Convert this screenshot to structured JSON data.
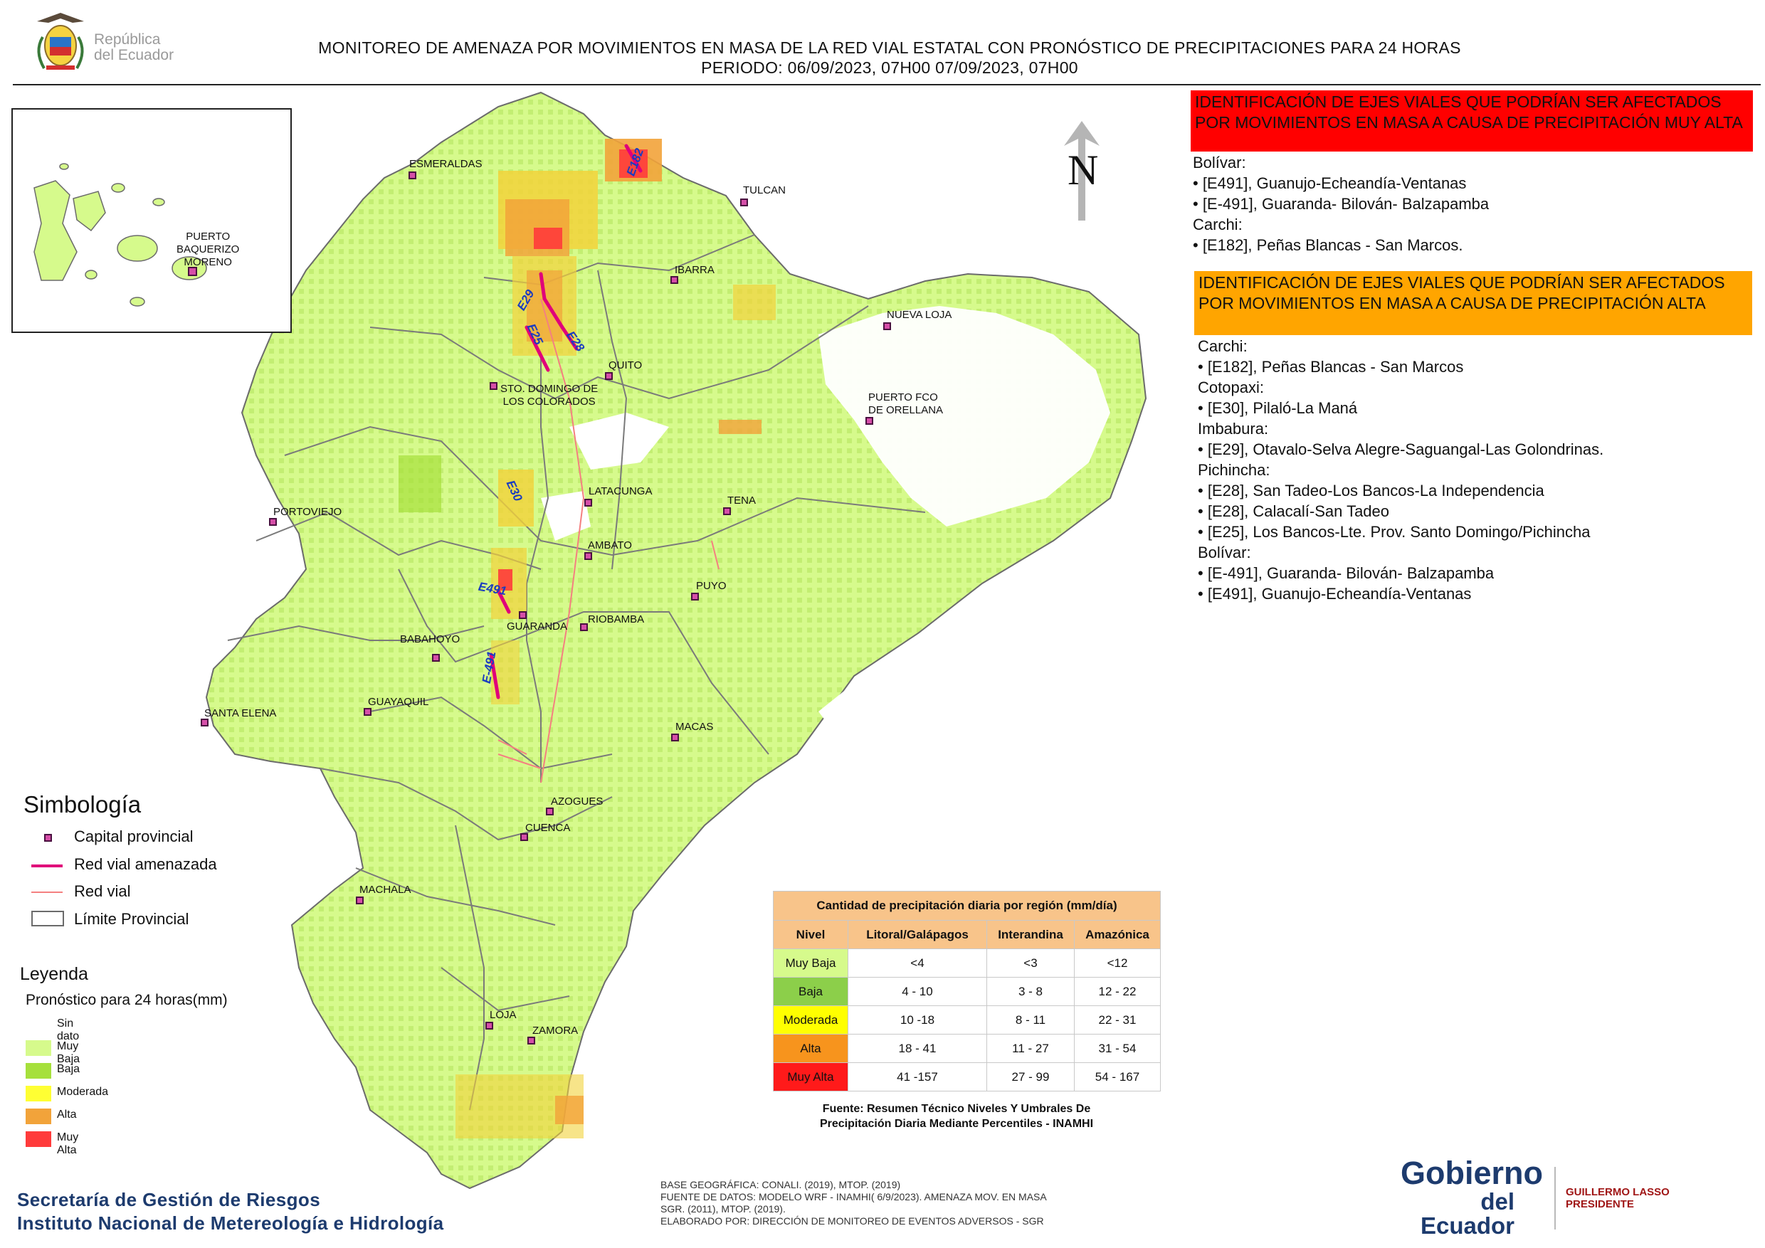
{
  "header": {
    "title_line1": "MONITOREO DE AMENAZA POR MOVIMIENTOS EN MASA DE LA RED VIAL  ESTATAL  CON PRONÓSTICO  DE  PRECIPITACIONES PARA 24 HORAS",
    "title_line2": "PERIODO: 06/09/2023, 07H00 07/09/2023, 07H00",
    "logo_line1": "República",
    "logo_line2": "del Ecuador"
  },
  "map": {
    "north_label": "N",
    "inset_city": [
      "PUERTO",
      "BAQUERIZO",
      "MORENO"
    ],
    "cities": {
      "esmeraldas": "ESMERALDAS",
      "tulcan": "TULCAN",
      "ibarra": "IBARRA",
      "nueva_loja": "NUEVA LOJA",
      "quito": "QUITO",
      "sto_domingo_1": "STO. DOMINGO DE",
      "sto_domingo_2": "LOS COLORADOS",
      "orellana_1": "PUERTO FCO",
      "orellana_2": "DE ORELLANA",
      "latacunga": "LATACUNGA",
      "tena": "TENA",
      "portoviejo": "PORTOVIEJO",
      "ambato": "AMBATO",
      "puyo": "PUYO",
      "guaranda": "GUARANDA",
      "riobamba": "RIOBAMBA",
      "babahoyo": "BABAHOYO",
      "guayaquil": "GUAYAQUIL",
      "santa_elena": "SANTA ELENA",
      "macas": "MACAS",
      "azogues": "AZOGUES",
      "cuenca": "CUENCA",
      "machala": "MACHALA",
      "loja": "LOJA",
      "zamora": "ZAMORA"
    },
    "roads": {
      "e182": "E182",
      "e29": "E29",
      "e25": "E25",
      "e28": "E28",
      "e30": "E30",
      "e491": "E491",
      "e_491": "E-491"
    }
  },
  "panel_muy_alta": {
    "header": "IDENTIFICACIÓN DE EJES VIALES QUE PODRÍAN SER AFECTADOS POR MOVIMIENTOS EN MASA A CAUSA DE PRECIPITACIÓN MUY ALTA",
    "color": "#ff0000",
    "lines": [
      "Bolívar:",
      "• [E491], Guanujo-Echeandía-Ventanas",
      "• [E-491], Guaranda- Bilován- Balzapamba",
      "Carchi:",
      "• [E182], Peñas Blancas - San Marcos."
    ]
  },
  "panel_alta": {
    "header": "IDENTIFICACIÓN DE EJES VIALES QUE PODRÍAN SER AFECTADOS POR MOVIMIENTOS EN MASA A CAUSA DE PRECIPITACIÓN  ALTA",
    "color": "#ffa500",
    "lines": [
      "Carchi:",
      "• [E182], Peñas Blancas - San Marcos",
      "Cotopaxi:",
      "• [E30], Pilaló-La Maná",
      "Imbabura:",
      "• [E29], Otavalo-Selva Alegre-Saguangal-Las Golondrinas.",
      "Pichincha:",
      "• [E28], San Tadeo-Los Bancos-La Independencia",
      "• [E28], Calacalí-San Tadeo",
      "• [E25], Los Bancos-Lte. Prov. Santo Domingo/Pichincha",
      "Bolívar:",
      "• [E-491], Guaranda- Bilován- Balzapamba",
      "• [E491], Guanujo-Echeandía-Ventanas"
    ]
  },
  "simbologia": {
    "title": "Simbología",
    "items": [
      "Capital provincial",
      "Red vial amenazada",
      "Red vial",
      "Límite Provincial"
    ]
  },
  "leyenda": {
    "title": "Leyenda",
    "subtitle": "Pronóstico para 24 horas(mm)",
    "items": [
      {
        "label": "Sin dato",
        "color": "#ffffff"
      },
      {
        "label": "Muy Baja",
        "color": "#d6fa8c"
      },
      {
        "label": "Baja",
        "color": "#a6e03c"
      },
      {
        "label": "Moderada",
        "color": "#ffff33"
      },
      {
        "label": "Alta",
        "color": "#f2a33a"
      },
      {
        "label": "Muy Alta",
        "color": "#ff3b3b"
      }
    ]
  },
  "precip_table": {
    "title": "Cantidad de precipitación diaria por región (mm/día)",
    "headers": [
      "Nivel",
      "Litoral/Galápagos",
      "Interandina",
      "Amazónica"
    ],
    "rows": [
      {
        "nivel": "Muy Baja",
        "color": "#d6fa8c",
        "litoral": "<4",
        "interandina": "<3",
        "amazonica": "<12"
      },
      {
        "nivel": "Baja",
        "color": "#8ccf4a",
        "litoral": "4 - 10",
        "interandina": "3 - 8",
        "amazonica": "12 - 22"
      },
      {
        "nivel": "Moderada",
        "color": "#ffff00",
        "litoral": "10 -18",
        "interandina": "8 - 11",
        "amazonica": "22 - 31"
      },
      {
        "nivel": "Alta",
        "color": "#f7941d",
        "litoral": "18 - 41",
        "interandina": "11 - 27",
        "amazonica": "31 - 54"
      },
      {
        "nivel": "Muy Alta",
        "color": "#ff1a1a",
        "litoral": "41 -157",
        "interandina": "27 - 99",
        "amazonica": "54 - 167"
      }
    ],
    "source_1": "Fuente: Resumen Técnico Niveles Y Umbrales De",
    "source_2": "Precipitación Diaria Mediante Percentiles - INAMHI"
  },
  "footer": {
    "line1": "BASE GEOGRÁFICA: CONALI. (2019), MTOP. (2019)",
    "line2": "FUENTE DE DATOS: MODELO WRF - INAMHI( 6/9/2023).  AMENAZA MOV. EN MASA",
    "line3": "SGR. (2011), MTOP. (2019).",
    "line4": "ELABORADO POR: DIRECCIÓN DE MONITOREO DE EVENTOS ADVERSOS - SGR",
    "org1": "Secretaría de Gestión de Riesgos",
    "org2": "Instituto Nacional de Metereología e Hidrología"
  },
  "gov_logo": {
    "line1": "Gobierno",
    "line2": "del Ecuador",
    "president_name": "GUILLERMO LASSO",
    "president_title": "PRESIDENTE"
  }
}
